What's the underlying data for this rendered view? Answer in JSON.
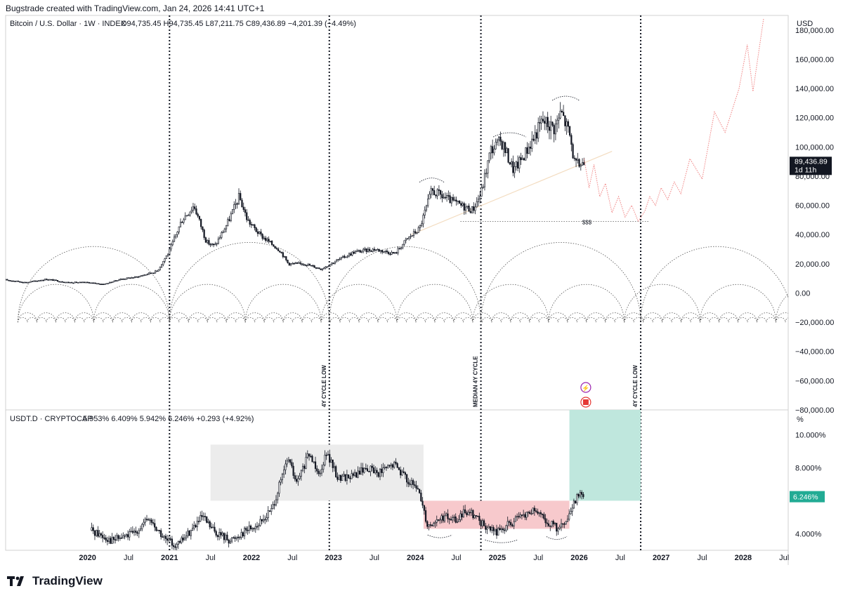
{
  "header": {
    "credit": "Bugstrade created with TradingView.com, Jan 24, 2026 14:41 UTC+1"
  },
  "brand": {
    "name": "TradingView",
    "icon": "tradingview-logo-icon"
  },
  "chart_data": [
    {
      "type": "candlestick",
      "title": "Bitcoin / U.S. Dollar · 1W · INDEX",
      "ohlc_label": "O94,735.45  H94,735.45  L87,211.75  C89,436.89  −4,201.39 (−4.49%)",
      "currency": "USD",
      "y_ticks": [
        180000,
        160000,
        140000,
        120000,
        100000,
        80000,
        60000,
        40000,
        20000,
        0,
        -20000,
        -40000,
        -60000,
        -80000
      ],
      "y_tick_labels": [
        "180,000.00",
        "160,000.00",
        "140,000.00",
        "120,000.00",
        "100,000.00",
        "80,000.00",
        "60,000.00",
        "40,000.00",
        "20,000.00",
        "0.00",
        "−20,000.00",
        "−40,000.00",
        "−60,000.00",
        "−80,000.00"
      ],
      "ylim": [
        -80000,
        190000
      ],
      "price_label": "89,436.89",
      "countdown_label": "1d 11h",
      "level_label": "$$$",
      "level_value": 49000,
      "cycle_labels": [
        "4Y CYCLE LOW",
        "MEDIAN 4Y CYCLE",
        "4Y CYCLE LOW"
      ],
      "price_path": [
        [
          2019.0,
          9000
        ],
        [
          2019.25,
          7200
        ],
        [
          2019.5,
          9500
        ],
        [
          2019.75,
          7300
        ],
        [
          2020.0,
          7200
        ],
        [
          2020.2,
          6000
        ],
        [
          2020.4,
          9500
        ],
        [
          2020.6,
          11000
        ],
        [
          2020.85,
          15000
        ],
        [
          2021.0,
          29000
        ],
        [
          2021.15,
          50000
        ],
        [
          2021.3,
          60000
        ],
        [
          2021.45,
          35000
        ],
        [
          2021.55,
          32000
        ],
        [
          2021.7,
          47000
        ],
        [
          2021.85,
          66000
        ],
        [
          2021.95,
          50000
        ],
        [
          2022.1,
          40000
        ],
        [
          2022.35,
          29000
        ],
        [
          2022.45,
          20000
        ],
        [
          2022.65,
          20000
        ],
        [
          2022.85,
          16500
        ],
        [
          2023.0,
          21000
        ],
        [
          2023.25,
          28000
        ],
        [
          2023.5,
          30000
        ],
        [
          2023.75,
          27000
        ],
        [
          2023.9,
          37000
        ],
        [
          2024.05,
          44000
        ],
        [
          2024.2,
          70000
        ],
        [
          2024.4,
          64000
        ],
        [
          2024.55,
          60000
        ],
        [
          2024.7,
          57000
        ],
        [
          2024.8,
          68000
        ],
        [
          2024.92,
          98000
        ],
        [
          2025.05,
          104000
        ],
        [
          2025.2,
          84000
        ],
        [
          2025.3,
          92000
        ],
        [
          2025.45,
          107000
        ],
        [
          2025.55,
          118000
        ],
        [
          2025.7,
          113000
        ],
        [
          2025.78,
          124000
        ],
        [
          2025.88,
          109000
        ],
        [
          2025.95,
          87000
        ],
        [
          2026.06,
          89400
        ]
      ],
      "projection_path": [
        [
          2026.06,
          92000
        ],
        [
          2026.12,
          72000
        ],
        [
          2026.18,
          88000
        ],
        [
          2026.25,
          66000
        ],
        [
          2026.32,
          75000
        ],
        [
          2026.4,
          55000
        ],
        [
          2026.48,
          66000
        ],
        [
          2026.56,
          52000
        ],
        [
          2026.64,
          60000
        ],
        [
          2026.72,
          49000
        ],
        [
          2026.8,
          56000
        ],
        [
          2026.86,
          66000
        ],
        [
          2026.93,
          60000
        ],
        [
          2027.0,
          72000
        ],
        [
          2027.08,
          64000
        ],
        [
          2027.16,
          76000
        ],
        [
          2027.24,
          68000
        ],
        [
          2027.35,
          92000
        ],
        [
          2027.5,
          78000
        ],
        [
          2027.65,
          124000
        ],
        [
          2027.78,
          110000
        ],
        [
          2027.95,
          140000
        ],
        [
          2028.05,
          170000
        ],
        [
          2028.12,
          138000
        ],
        [
          2028.25,
          188000
        ]
      ]
    },
    {
      "type": "candlestick",
      "title": "USDT.D · CRYPTOCAP",
      "ohlc_label": "5.953%  6.409%  5.942%  6.246%  +0.293 (+4.92%)",
      "unit": "%",
      "y_ticks": [
        10,
        8,
        4
      ],
      "y_tick_labels": [
        "10.000%",
        "8.000%",
        "4.000%"
      ],
      "ylim": [
        3.0,
        11.5
      ],
      "price_label": "6.246%",
      "path": [
        [
          2020.05,
          4.2
        ],
        [
          2020.3,
          3.6
        ],
        [
          2020.55,
          4.0
        ],
        [
          2020.75,
          4.9
        ],
        [
          2020.95,
          3.6
        ],
        [
          2021.1,
          3.3
        ],
        [
          2021.4,
          5.0
        ],
        [
          2021.55,
          4.1
        ],
        [
          2021.75,
          3.6
        ],
        [
          2021.95,
          4.3
        ],
        [
          2022.1,
          4.6
        ],
        [
          2022.25,
          5.5
        ],
        [
          2022.45,
          8.6
        ],
        [
          2022.55,
          7.0
        ],
        [
          2022.7,
          8.8
        ],
        [
          2022.85,
          7.6
        ],
        [
          2022.9,
          9.1
        ],
        [
          2023.05,
          7.4
        ],
        [
          2023.25,
          7.5
        ],
        [
          2023.4,
          8.0
        ],
        [
          2023.55,
          7.7
        ],
        [
          2023.75,
          8.2
        ],
        [
          2023.95,
          7.0
        ],
        [
          2024.05,
          6.5
        ],
        [
          2024.15,
          4.5
        ],
        [
          2024.35,
          5.0
        ],
        [
          2024.5,
          4.8
        ],
        [
          2024.65,
          5.5
        ],
        [
          2024.85,
          4.4
        ],
        [
          2025.0,
          4.1
        ],
        [
          2025.15,
          4.6
        ],
        [
          2025.3,
          5.0
        ],
        [
          2025.45,
          5.4
        ],
        [
          2025.6,
          4.7
        ],
        [
          2025.75,
          4.3
        ],
        [
          2025.85,
          4.7
        ],
        [
          2025.9,
          5.3
        ],
        [
          2026.0,
          6.6
        ],
        [
          2026.06,
          6.25
        ]
      ]
    }
  ],
  "x_axis": {
    "labels": [
      "2020",
      "Jul",
      "2021",
      "Jul",
      "2022",
      "Jul",
      "2023",
      "Jul",
      "2024",
      "Jul",
      "2025",
      "Jul",
      "2026",
      "Jul",
      "2027",
      "Jul",
      "2028",
      "Jul"
    ],
    "values": [
      2020.0,
      2020.5,
      2021.0,
      2021.5,
      2022.0,
      2022.5,
      2023.0,
      2023.5,
      2024.0,
      2024.5,
      2025.0,
      2025.5,
      2026.0,
      2026.5,
      2027.0,
      2027.5,
      2028.0,
      2028.5
    ],
    "bold": [
      true,
      false,
      true,
      false,
      true,
      false,
      true,
      false,
      true,
      false,
      true,
      false,
      true,
      false,
      true,
      false,
      true,
      false
    ]
  },
  "cycle_dates": [
    2021.0,
    2022.95,
    2024.8,
    2026.75
  ],
  "colors": {
    "candle": "#131722",
    "projection": "#f08080",
    "cycle_arc": "#555555",
    "price_badge": "#131722",
    "usdt_badge": "#22ab94",
    "grey_box": "#ececec",
    "red_box": "#f7c9cc",
    "green_box": "#bfe7dd",
    "trendline": "#f3dcc0"
  }
}
